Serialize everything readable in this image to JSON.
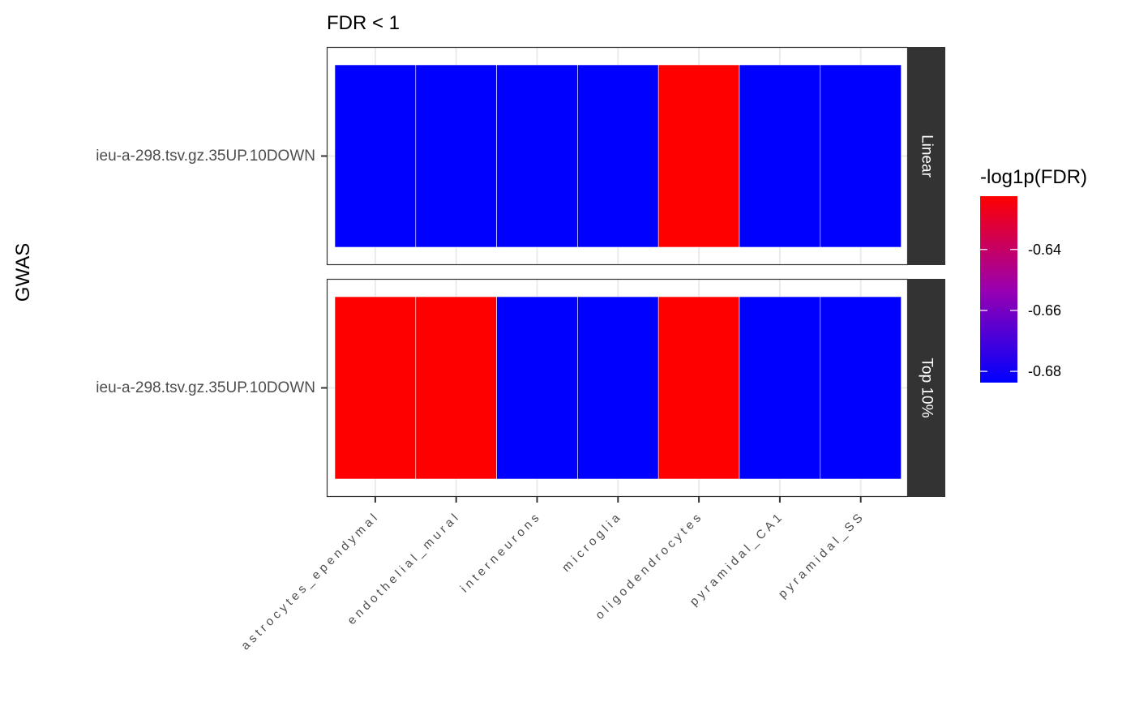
{
  "chart_data": {
    "type": "heatmap",
    "title": "FDR < 1",
    "xlabel": "",
    "ylabel": "GWAS",
    "categories": [
      "astrocytes_ependymal",
      "endothelial_mural",
      "interneurons",
      "microglia",
      "oligodendrocytes",
      "pyramidal_CA1",
      "pyramidal_SS"
    ],
    "facets": [
      {
        "label": "Linear",
        "row": "ieu-a-298.tsv.gz.35UP.10DOWN",
        "values": [
          -0.6837,
          -0.6837,
          -0.6837,
          -0.6837,
          -0.6225,
          -0.6837,
          -0.6837
        ]
      },
      {
        "label": "Top 10%",
        "row": "ieu-a-298.tsv.gz.35UP.10DOWN",
        "values": [
          -0.6225,
          -0.6225,
          -0.6837,
          -0.6837,
          -0.6225,
          -0.6837,
          -0.6837
        ]
      }
    ],
    "legend": {
      "title": "-log1p(FDR)",
      "position": "right",
      "min": -0.6837,
      "max": -0.6225,
      "ticks": [
        -0.64,
        -0.66,
        -0.68
      ],
      "low_color": "#0000ff",
      "mid_color": "#9a00b0",
      "high_color": "#ff0000"
    },
    "grid": true,
    "theme": "bw"
  }
}
